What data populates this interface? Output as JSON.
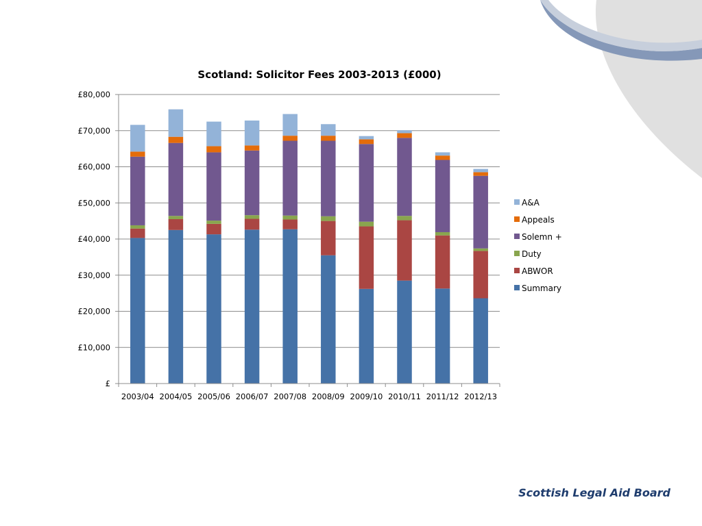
{
  "footer": {
    "brand": "Scottish Legal Aid Board"
  },
  "colors": {
    "summary": "#4572a7",
    "abwor": "#aa4643",
    "duty": "#89a54e",
    "solemn": "#71588f",
    "appeals": "#e46c0a",
    "aa": "#93b3d8",
    "decor_light": "#e0e0e0",
    "decor_dark": "#8598b8"
  },
  "chart_data": {
    "type": "bar",
    "stacked": true,
    "title": "Scotland: Solicitor Fees 2003-2013 (£000)",
    "xlabel": "",
    "ylabel": "",
    "ylim": [
      0,
      80000
    ],
    "yticks": [
      0,
      10000,
      20000,
      30000,
      40000,
      50000,
      60000,
      70000,
      80000
    ],
    "ytick_labels": [
      "£",
      "£10,000",
      "£20,000",
      "£30,000",
      "£40,000",
      "£50,000",
      "£60,000",
      "£70,000",
      "£80,000"
    ],
    "grid": true,
    "legend_position": "right",
    "categories": [
      "2003/04",
      "2004/05",
      "2005/06",
      "2006/07",
      "2007/08",
      "2008/09",
      "2009/10",
      "2010/11",
      "2011/12",
      "2012/13"
    ],
    "series": [
      {
        "name": "Summary",
        "color": "#4572a7",
        "values": [
          40300,
          42500,
          41300,
          42600,
          42700,
          35500,
          26200,
          28500,
          26300,
          23600
        ]
      },
      {
        "name": "ABWOR",
        "color": "#aa4643",
        "values": [
          2600,
          3000,
          2900,
          3000,
          2700,
          9500,
          17300,
          16700,
          14700,
          13100
        ]
      },
      {
        "name": "Duty",
        "color": "#89a54e",
        "values": [
          900,
          900,
          900,
          1000,
          1100,
          1300,
          1300,
          1200,
          900,
          700
        ]
      },
      {
        "name": "Solemn +",
        "color": "#71588f",
        "values": [
          19000,
          20200,
          18900,
          17900,
          20700,
          20900,
          21500,
          21600,
          20000,
          20100
        ]
      },
      {
        "name": "Appeals",
        "color": "#e46c0a",
        "values": [
          1400,
          1700,
          1700,
          1400,
          1400,
          1400,
          1300,
          1300,
          1200,
          1000
        ]
      },
      {
        "name": "A&A",
        "color": "#93b3d8",
        "values": [
          7400,
          7600,
          6800,
          6900,
          6000,
          3200,
          900,
          800,
          900,
          900
        ]
      }
    ]
  }
}
